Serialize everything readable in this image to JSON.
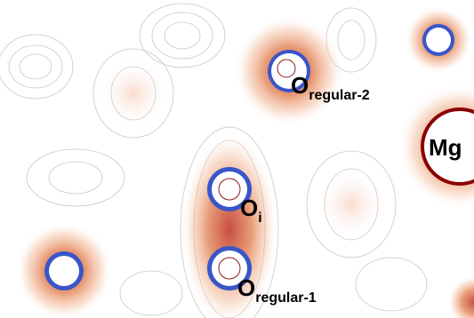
{
  "labels": [
    {
      "main": "O",
      "sub": "regular-2"
    },
    {
      "main": "Mg"
    },
    {
      "main": "O",
      "sub": "i"
    },
    {
      "main": "O",
      "sub": "regular-1"
    }
  ]
}
